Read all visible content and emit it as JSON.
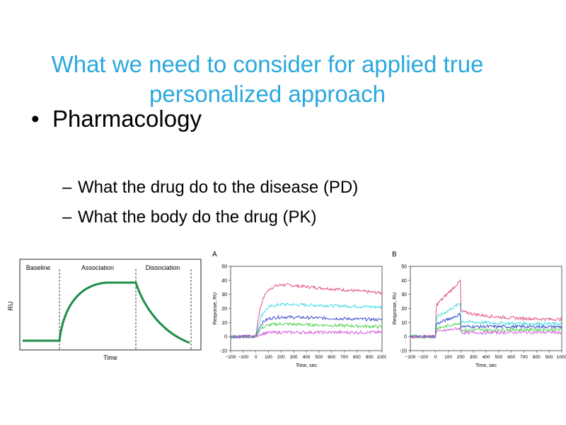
{
  "slide": {
    "title": "What we need to consider for applied true personalized approach",
    "bullet": "Pharmacology",
    "sub_items": [
      "What the drug do to the disease (PD)",
      "What the body do the drug (PK)"
    ]
  },
  "sensorgram_schematic": {
    "phases": [
      "Baseline",
      "Association",
      "Dissociation"
    ],
    "ylabel": "RU",
    "xlabel": "Time",
    "curve_color": "#1f8f4a"
  },
  "chart_data": [
    {
      "type": "line",
      "panel": "A",
      "xlabel": "Time, sec",
      "ylabel": "Response, RU",
      "xlim": [
        -200,
        1000
      ],
      "ylim": [
        -10,
        50
      ],
      "xticks": [
        -200,
        -100,
        0,
        100,
        200,
        300,
        400,
        500,
        600,
        700,
        800,
        900,
        1000
      ],
      "yticks": [
        -10,
        0,
        10,
        20,
        30,
        40,
        50
      ],
      "injection_end": 200,
      "series": [
        {
          "color": "#e0407a",
          "plateau": 37,
          "end": 31
        },
        {
          "color": "#30d8e0",
          "plateau": 23,
          "end": 21
        },
        {
          "color": "#2a3fc8",
          "plateau": 14,
          "end": 12
        },
        {
          "color": "#40d040",
          "plateau": 9,
          "end": 7
        },
        {
          "color": "#d050d8",
          "plateau": 3,
          "end": 3
        }
      ]
    },
    {
      "type": "line",
      "panel": "B",
      "xlabel": "Time, sec",
      "ylabel": "Response, RU",
      "xlim": [
        -200,
        1000
      ],
      "ylim": [
        -10,
        50
      ],
      "xticks": [
        -200,
        -100,
        0,
        100,
        200,
        300,
        400,
        500,
        600,
        700,
        800,
        900,
        1000
      ],
      "yticks": [
        -10,
        0,
        10,
        20,
        30,
        40,
        50
      ],
      "injection_end": 200,
      "series": [
        {
          "color": "#e0407a",
          "plateau": 40,
          "end": 12
        },
        {
          "color": "#30d8e0",
          "plateau": 24,
          "end": 9
        },
        {
          "color": "#2a3fc8",
          "plateau": 16,
          "end": 7
        },
        {
          "color": "#40d040",
          "plateau": 10,
          "end": 5
        },
        {
          "color": "#d050d8",
          "plateau": 6,
          "end": 3
        }
      ]
    }
  ]
}
